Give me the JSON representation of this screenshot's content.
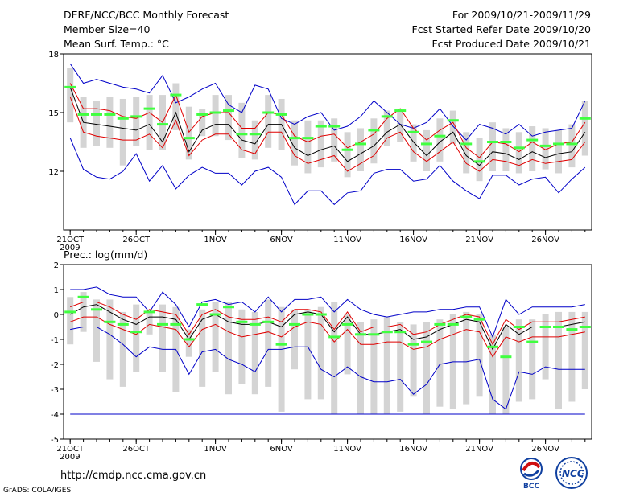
{
  "header": {
    "title": "DERF/NCC/BCC Monthly Forecast",
    "member_size": "Member Size=40",
    "variable": "Mean Surf. Temp.: °C",
    "period": "For 2009/10/21-2009/11/29",
    "started": "Fcst Started Refer Date 2009/10/20",
    "produced": "Fcst Produced Date 2009/10/21"
  },
  "footer": {
    "url": "http://cmdp.ncc.cma.gov.cn",
    "credit": "GrADS: COLA/IGES",
    "logo_bcc": "BCC",
    "logo_ncc": "NCC"
  },
  "colors": {
    "envelope": "#0000c8",
    "spread": "#e00000",
    "mean": "#000000",
    "box": "#d4d4d4",
    "marker": "#40ff40"
  },
  "chart_data": [
    {
      "type": "line",
      "title": "Mean Surf. Temp.: °C",
      "x_tick_labels": [
        "21OCT",
        "26OCT",
        "1NOV",
        "6NOV",
        "11NOV",
        "16NOV",
        "21NOV",
        "26NOV"
      ],
      "x_tick_days": [
        0,
        5,
        11,
        16,
        21,
        26,
        31,
        36
      ],
      "year_label": "2009",
      "xlim": [
        -0.5,
        39.5
      ],
      "ylim": [
        9,
        18
      ],
      "yticks": [
        12,
        15,
        18
      ],
      "series": [
        {
          "name": "max",
          "values": [
            17.5,
            16.5,
            16.7,
            16.5,
            16.3,
            16.2,
            16.0,
            16.9,
            15.5,
            15.8,
            16.2,
            16.5,
            15.4,
            15.0,
            16.4,
            16.2,
            14.7,
            14.4,
            14.8,
            15.0,
            14.1,
            14.3,
            14.8,
            15.6,
            15.0,
            14.4,
            14.2,
            14.5,
            15.2,
            14.3,
            13.6,
            14.4,
            14.2,
            13.9,
            14.4,
            13.8,
            14.0,
            14.1,
            14.2,
            15.6
          ]
        },
        {
          "name": "spread_upper",
          "values": [
            16.5,
            15.2,
            15.2,
            15.1,
            14.8,
            14.7,
            15.0,
            14.5,
            15.9,
            14.0,
            14.8,
            15.0,
            15.0,
            14.2,
            14.2,
            15.0,
            14.9,
            13.8,
            13.5,
            13.8,
            13.9,
            13.2,
            13.5,
            13.9,
            14.7,
            15.2,
            14.2,
            13.6,
            14.1,
            14.5,
            13.2,
            12.7,
            13.5,
            13.4,
            13.0,
            13.5,
            13.1,
            13.4,
            13.5,
            14.5
          ]
        },
        {
          "name": "mean",
          "values": [
            16.3,
            14.5,
            14.4,
            14.3,
            14.2,
            14.1,
            14.4,
            13.5,
            15.0,
            13.0,
            14.1,
            14.4,
            14.4,
            13.6,
            13.4,
            14.4,
            14.4,
            13.2,
            12.8,
            13.1,
            13.3,
            12.5,
            12.9,
            13.3,
            14.0,
            14.4,
            13.5,
            12.8,
            13.5,
            14.0,
            12.8,
            12.3,
            13.0,
            12.9,
            12.6,
            13.0,
            12.7,
            12.9,
            13.0,
            14.0
          ]
        },
        {
          "name": "spread_lower",
          "values": [
            15.8,
            14.0,
            13.8,
            13.7,
            13.6,
            13.6,
            13.9,
            13.2,
            14.6,
            12.8,
            13.6,
            13.9,
            13.9,
            13.1,
            12.9,
            14.0,
            14.0,
            12.8,
            12.4,
            12.6,
            12.8,
            12.0,
            12.4,
            12.8,
            13.7,
            14.0,
            13.0,
            12.5,
            13.0,
            13.5,
            12.4,
            12.0,
            12.6,
            12.5,
            12.3,
            12.6,
            12.4,
            12.5,
            12.6,
            13.5
          ]
        },
        {
          "name": "min",
          "values": [
            13.7,
            12.1,
            11.7,
            11.6,
            12.0,
            12.9,
            11.5,
            12.3,
            11.1,
            11.8,
            12.2,
            11.9,
            11.9,
            11.3,
            12.0,
            12.2,
            11.7,
            10.3,
            11.0,
            11.0,
            10.3,
            10.9,
            11.0,
            11.9,
            12.1,
            12.1,
            11.5,
            11.6,
            12.3,
            11.5,
            11.0,
            10.6,
            11.8,
            11.8,
            11.3,
            11.6,
            11.7,
            10.9,
            11.6,
            12.2
          ]
        },
        {
          "name": "marker",
          "values": [
            16.3,
            14.9,
            14.9,
            14.9,
            14.7,
            14.8,
            15.2,
            14.4,
            15.9,
            13.7,
            14.9,
            15.0,
            15.1,
            13.9,
            13.9,
            15.0,
            14.9,
            13.7,
            13.7,
            14.3,
            14.3,
            13.1,
            13.4,
            14.1,
            14.8,
            15.1,
            14.0,
            13.4,
            13.8,
            14.6,
            13.4,
            12.5,
            13.5,
            13.5,
            13.2,
            13.6,
            13.3,
            13.4,
            13.4,
            14.7
          ]
        },
        {
          "name": "range_top",
          "values": [
            17.3,
            15.8,
            15.6,
            15.8,
            15.7,
            15.8,
            15.9,
            15.9,
            16.5,
            15.3,
            15.2,
            15.9,
            15.9,
            15.5,
            14.6,
            15.9,
            15.7,
            14.6,
            14.6,
            14.6,
            14.7,
            14.0,
            14.2,
            14.7,
            15.1,
            15.1,
            14.4,
            14.1,
            14.7,
            15.1,
            14.0,
            13.7,
            14.5,
            14.2,
            14.0,
            14.3,
            14.2,
            14.1,
            14.4,
            15.6
          ]
        },
        {
          "name": "range_bottom",
          "values": [
            14.5,
            13.2,
            13.3,
            13.2,
            12.3,
            13.3,
            13.1,
            13.1,
            14.1,
            12.6,
            13.8,
            13.8,
            13.6,
            12.7,
            12.6,
            13.2,
            13.1,
            12.3,
            11.9,
            12.2,
            12.5,
            11.7,
            12.0,
            12.4,
            13.3,
            13.5,
            12.5,
            12.0,
            12.5,
            13.4,
            11.9,
            11.5,
            12.0,
            12.0,
            11.9,
            12.0,
            12.1,
            11.9,
            12.2,
            12.8
          ]
        }
      ]
    },
    {
      "type": "line",
      "title": "Prec.: log(mm/d)",
      "x_tick_labels": [
        "21OCT",
        "26OCT",
        "1NOV",
        "6NOV",
        "11NOV",
        "16NOV",
        "21NOV",
        "26NOV"
      ],
      "x_tick_days": [
        0,
        5,
        11,
        16,
        21,
        26,
        31,
        36
      ],
      "year_label": "2009",
      "xlim": [
        -0.5,
        39.5
      ],
      "ylim": [
        -5,
        2
      ],
      "yticks": [
        -5,
        -4,
        -3,
        -2,
        -1,
        0,
        1,
        2
      ],
      "floor_line": -4,
      "series": [
        {
          "name": "max",
          "values": [
            1.0,
            1.0,
            1.1,
            0.8,
            0.7,
            0.7,
            0.1,
            0.9,
            0.4,
            -0.5,
            0.5,
            0.6,
            0.4,
            0.5,
            0.1,
            0.7,
            0.1,
            0.6,
            0.6,
            0.7,
            0.1,
            0.6,
            0.2,
            0.0,
            -0.1,
            0.0,
            0.1,
            0.1,
            0.2,
            0.2,
            0.3,
            0.3,
            -0.9,
            0.6,
            0.0,
            0.3,
            0.3,
            0.3,
            0.3,
            0.4
          ]
        },
        {
          "name": "spread_upper",
          "values": [
            0.3,
            0.5,
            0.5,
            0.3,
            0.0,
            -0.2,
            0.2,
            0.1,
            0.0,
            -0.8,
            0.0,
            0.2,
            -0.1,
            -0.2,
            -0.2,
            -0.1,
            -0.3,
            0.2,
            0.2,
            0.1,
            -0.6,
            0.1,
            -0.7,
            -0.5,
            -0.5,
            -0.4,
            -0.8,
            -0.7,
            -0.4,
            -0.2,
            0.0,
            -0.1,
            -1.2,
            -0.2,
            -0.6,
            -0.3,
            -0.3,
            -0.3,
            -0.2,
            -0.1
          ]
        },
        {
          "name": "mean",
          "values": [
            0.0,
            0.3,
            0.4,
            0.1,
            -0.2,
            -0.4,
            -0.1,
            -0.1,
            -0.2,
            -1.0,
            -0.2,
            0.0,
            -0.3,
            -0.4,
            -0.4,
            -0.3,
            -0.5,
            0.0,
            0.1,
            0.0,
            -0.7,
            -0.1,
            -0.8,
            -0.8,
            -0.7,
            -0.6,
            -1.0,
            -0.9,
            -0.6,
            -0.4,
            -0.2,
            -0.3,
            -1.4,
            -0.4,
            -0.8,
            -0.5,
            -0.5,
            -0.5,
            -0.4,
            -0.3
          ]
        },
        {
          "name": "spread_lower",
          "values": [
            -0.3,
            -0.1,
            -0.1,
            -0.4,
            -0.6,
            -0.8,
            -0.4,
            -0.5,
            -0.6,
            -1.3,
            -0.6,
            -0.4,
            -0.7,
            -0.9,
            -0.8,
            -0.7,
            -0.9,
            -0.5,
            -0.3,
            -0.4,
            -1.1,
            -0.6,
            -1.2,
            -1.2,
            -1.1,
            -1.1,
            -1.4,
            -1.3,
            -1.0,
            -0.8,
            -0.6,
            -0.7,
            -1.7,
            -0.9,
            -1.1,
            -0.9,
            -0.9,
            -0.9,
            -0.8,
            -0.7
          ]
        },
        {
          "name": "min",
          "values": [
            -0.6,
            -0.5,
            -0.5,
            -0.8,
            -1.2,
            -1.7,
            -1.3,
            -1.4,
            -1.4,
            -2.4,
            -1.5,
            -1.4,
            -1.8,
            -2.0,
            -2.3,
            -1.4,
            -1.4,
            -1.3,
            -1.3,
            -2.2,
            -2.5,
            -2.1,
            -2.5,
            -2.7,
            -2.7,
            -2.6,
            -3.2,
            -2.8,
            -2.0,
            -1.9,
            -1.9,
            -1.8,
            -3.4,
            -3.8,
            -2.3,
            -2.4,
            -2.1,
            -2.2,
            -2.2,
            -2.2
          ]
        },
        {
          "name": "marker",
          "values": [
            0.1,
            0.7,
            0.2,
            -0.3,
            -0.4,
            -0.7,
            0.1,
            -0.4,
            -0.4,
            -1.0,
            0.4,
            0.0,
            0.3,
            -0.3,
            -0.4,
            -0.3,
            -1.2,
            -0.4,
            0.0,
            0.0,
            -0.9,
            -0.4,
            -0.8,
            -0.8,
            -0.7,
            -0.7,
            -1.2,
            -1.1,
            -0.4,
            -0.4,
            -0.1,
            -0.2,
            -1.3,
            -1.7,
            -0.5,
            -1.1,
            -0.5,
            -0.5,
            -0.6,
            -0.5
          ]
        },
        {
          "name": "range_top",
          "values": [
            0.7,
            0.9,
            0.6,
            0.6,
            0.1,
            0.4,
            0.1,
            0.4,
            0.3,
            -0.6,
            0.2,
            0.5,
            0.5,
            0.2,
            0.1,
            0.6,
            0.3,
            0.2,
            0.2,
            0.3,
            0.5,
            0.0,
            -0.3,
            -0.2,
            -0.1,
            -0.3,
            -0.4,
            -0.3,
            -0.2,
            0.0,
            0.1,
            0.0,
            -0.8,
            -0.5,
            -0.2,
            -0.2,
            0.0,
            0.1,
            0.1,
            0.1
          ]
        },
        {
          "name": "range_bottom",
          "values": [
            -1.2,
            -0.7,
            -1.9,
            -2.6,
            -2.9,
            -2.3,
            -0.8,
            -2.3,
            -3.1,
            -1.7,
            -2.9,
            -2.3,
            -3.2,
            -2.8,
            -3.2,
            -2.9,
            -3.9,
            -2.2,
            -3.4,
            -3.4,
            -4.0,
            -2.4,
            -4.0,
            -4.0,
            -4.0,
            -3.9,
            -3.3,
            -4.0,
            -3.7,
            -3.8,
            -3.6,
            -3.3,
            -4.0,
            -4.0,
            -3.5,
            -3.4,
            -2.6,
            -3.8,
            -3.5,
            -3.0
          ]
        }
      ]
    }
  ]
}
